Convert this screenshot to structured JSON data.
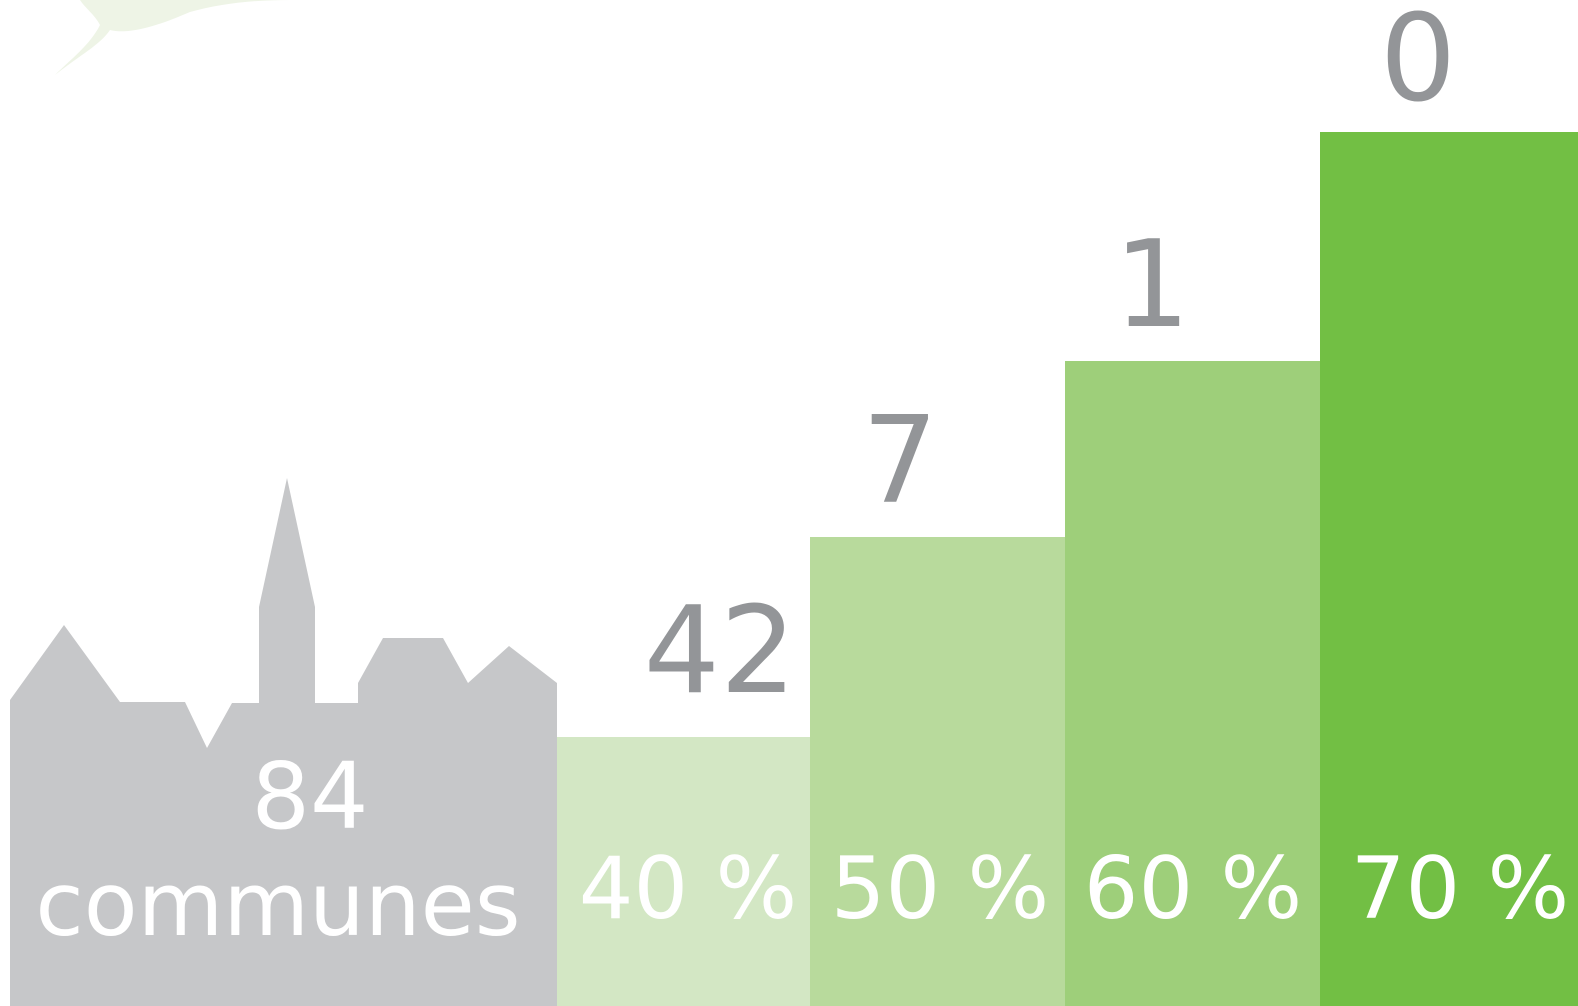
{
  "total": {
    "value": 84,
    "label": "communes"
  },
  "steps": [
    {
      "count": 42,
      "label": "40 %"
    },
    {
      "count": 7,
      "label": "50 %"
    },
    {
      "count": 1,
      "label": "60 %"
    },
    {
      "count": 0,
      "label": "70 %"
    }
  ]
}
